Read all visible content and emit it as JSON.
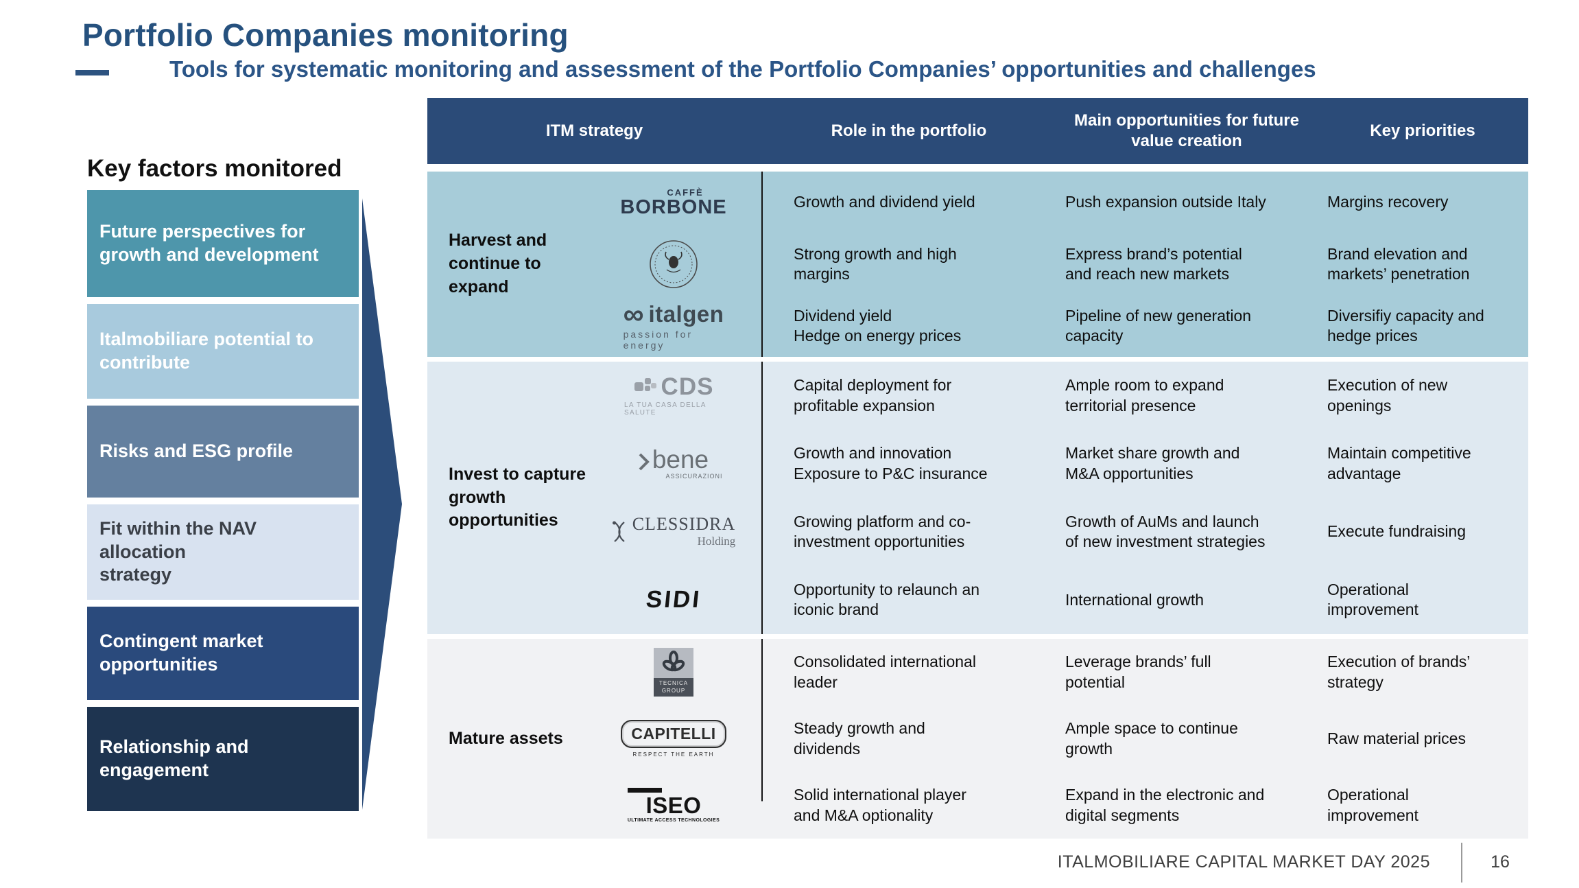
{
  "slide": {
    "title": "Portfolio Companies monitoring",
    "subtitle": "Tools for systematic monitoring and assessment of the Portfolio Companies’ opportunities and challenges"
  },
  "key_factors": {
    "heading": "Key factors monitored",
    "items": [
      {
        "label": "Future perspectives for\ngrowth and development",
        "bg": "#4e96ab",
        "color": "#ffffff"
      },
      {
        "label": "Italmobiliare potential to\ncontribute",
        "bg": "#a8cadd",
        "color": "#ffffff"
      },
      {
        "label": "Risks and ESG profile",
        "bg": "#64809f",
        "color": "#ffffff"
      },
      {
        "label": "Fit within the NAV allocation\nstrategy",
        "bg": "#d8e2f0",
        "color": "#3a3f47"
      },
      {
        "label": "Contingent market\nopportunities",
        "bg": "#2a4a7c",
        "color": "#ffffff"
      },
      {
        "label": "Relationship and\nengagement",
        "bg": "#1e3450",
        "color": "#ffffff"
      }
    ]
  },
  "colors": {
    "header_bg": "#2b4b78",
    "arrow": "#2c4d7a",
    "title_blue": "#26517e",
    "divider": "#141414"
  },
  "table": {
    "headers": [
      "ITM strategy",
      "Role in the portfolio",
      "Main opportunities for future\nvalue creation",
      "Key priorities"
    ],
    "groups": [
      {
        "strategy": "Harvest and\ncontinue to\nexpand",
        "bg": "#a7ccd9",
        "rows": [
          {
            "logo": "borbone",
            "role": "Growth and dividend yield",
            "opportunity": "Push expansion outside Italy",
            "priority": "Margins recovery"
          },
          {
            "logo": "smn",
            "role": "Strong growth and high\nmargins",
            "opportunity": "Express brand’s potential\nand reach new markets",
            "priority": "Brand elevation and\nmarkets’ penetration"
          },
          {
            "logo": "italgen",
            "role": "Dividend yield\nHedge on energy prices",
            "opportunity": "Pipeline of new generation\ncapacity",
            "priority": "Diversifiy capacity and\nhedge prices"
          }
        ]
      },
      {
        "strategy": "Invest to capture\ngrowth\nopportunities",
        "bg": "#dfe9f1",
        "rows": [
          {
            "logo": "cds",
            "role": "Capital deployment for\nprofitable expansion",
            "opportunity": "Ample room to expand\nterritorial presence",
            "priority": "Execution of new\nopenings"
          },
          {
            "logo": "bene",
            "role": "Growth and innovation\nExposure to P&C insurance",
            "opportunity": "Market share growth and\nM&A opportunities",
            "priority": "Maintain competitive\nadvantage"
          },
          {
            "logo": "clessidra",
            "role": "Growing platform and co-\ninvestment opportunities",
            "opportunity": "Growth of AuMs and launch\nof new investment strategies",
            "priority": "Execute fundraising"
          },
          {
            "logo": "sidi",
            "role": "Opportunity to relaunch an\niconic brand",
            "opportunity": "International growth",
            "priority": "Operational\nimprovement"
          }
        ]
      },
      {
        "strategy": "Mature assets",
        "bg": "#f1f2f4",
        "rows": [
          {
            "logo": "tecnica",
            "role": "Consolidated international\nleader",
            "opportunity": "Leverage brands’ full\npotential",
            "priority": "Execution of brands’\nstrategy"
          },
          {
            "logo": "capitelli",
            "role": "Steady growth and\ndividends",
            "opportunity": "Ample space to continue\ngrowth",
            "priority": "Raw material prices"
          },
          {
            "logo": "iseo",
            "role": "Solid international player\nand M&A optionality",
            "opportunity": "Expand in the electronic and\ndigital segments",
            "priority": "Operational\nimprovement"
          }
        ]
      }
    ]
  },
  "logos": {
    "borbone": {
      "name": "Caffè Borbone",
      "top": "CAFFÈ",
      "main": "BORBONE"
    },
    "smn": {
      "name": "Santa Maria Novella"
    },
    "italgen": {
      "name": "Italgen",
      "main": "italgen",
      "tagline": "passion for energy"
    },
    "cds": {
      "name": "CDS",
      "main": "CDS",
      "tagline": "LA TUA CASA DELLA SALUTE"
    },
    "bene": {
      "name": "Bene Assicurazioni",
      "main": "bene",
      "tagline": "ASSICURAZIONI"
    },
    "clessidra": {
      "name": "Clessidra Holding",
      "main": "CLESSIDRA",
      "sub": "Holding"
    },
    "sidi": {
      "name": "SIDI",
      "main": "SIDI"
    },
    "tecnica": {
      "name": "Tecnica Group",
      "band": "TECNICA\nGROUP"
    },
    "capitelli": {
      "name": "Capitelli",
      "main": "CAPITELLI",
      "tagline": "RESPECT THE EARTH"
    },
    "iseo": {
      "name": "ISEO",
      "main": "ISEO",
      "tagline": "ULTIMATE ACCESS TECHNOLOGIES"
    }
  },
  "footer": {
    "label": "ITALMOBILIARE CAPITAL MARKET DAY 2025",
    "page": "16"
  }
}
